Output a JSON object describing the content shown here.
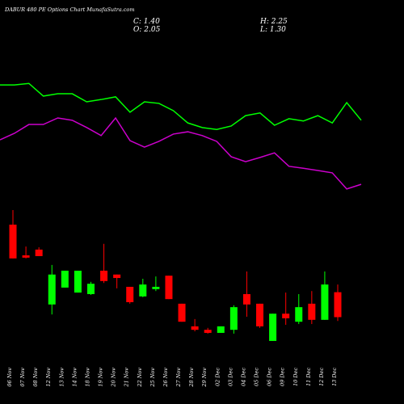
{
  "header": {
    "title": "DABUR 480 PE Options Chart MunafaSutra.com",
    "close": "C: 1.40",
    "high": "H: 2.25",
    "open": "O: 2.05",
    "low": "L: 1.30"
  },
  "chart_data": {
    "type": "candlestick",
    "categories": [
      "06 Nov",
      "07 Nov",
      "08 Nov",
      "12 Nov",
      "13 Nov",
      "14 Nov",
      "18 Nov",
      "19 Nov",
      "20 Nov",
      "21 Nov",
      "22 Nov",
      "25 Nov",
      "26 Nov",
      "27 Nov",
      "28 Nov",
      "29 Nov",
      "02 Dec",
      "03 Dec",
      "04 Dec",
      "05 Dec",
      "06 Dec",
      "09 Dec",
      "10 Dec",
      "11 Dec",
      "12 Dec",
      "13 Dec"
    ],
    "open": [
      3.81,
      3.01,
      3.16,
      1.73,
      2.17,
      2.04,
      2.0,
      2.61,
      2.51,
      2.19,
      1.94,
      2.13,
      2.48,
      1.75,
      1.16,
      1.07,
      0.99,
      1.07,
      2.0,
      1.75,
      0.78,
      1.49,
      1.28,
      1.75,
      1.33,
      2.05
    ],
    "high": [
      4.19,
      3.24,
      3.22,
      2.76,
      2.61,
      2.61,
      2.32,
      3.31,
      2.51,
      2.19,
      2.4,
      2.46,
      2.48,
      1.75,
      1.35,
      1.12,
      1.16,
      1.71,
      2.59,
      1.75,
      1.49,
      2.04,
      2.0,
      2.08,
      2.59,
      2.25
    ],
    "low": [
      2.93,
      2.93,
      2.99,
      1.47,
      2.17,
      2.04,
      1.98,
      2.29,
      2.15,
      1.75,
      1.92,
      2.08,
      1.87,
      1.28,
      1.03,
      0.97,
      0.99,
      0.97,
      1.41,
      1.12,
      0.78,
      1.2,
      1.22,
      1.22,
      1.33,
      1.3
    ],
    "close": [
      2.93,
      2.95,
      2.99,
      2.51,
      2.61,
      2.61,
      2.27,
      2.34,
      2.42,
      1.79,
      2.25,
      2.19,
      1.87,
      1.28,
      1.07,
      0.99,
      1.16,
      1.66,
      1.73,
      1.16,
      1.49,
      1.37,
      1.66,
      1.33,
      2.25,
      1.4
    ],
    "up_color": "#00ff00",
    "down_color": "#ff0000",
    "lines": [
      {
        "color": "#00ff00",
        "values": [
          7.45,
          7.45,
          7.49,
          7.16,
          7.22,
          7.22,
          7.01,
          7.07,
          7.14,
          6.74,
          7.01,
          6.97,
          6.78,
          6.46,
          6.34,
          6.29,
          6.38,
          6.65,
          6.72,
          6.4,
          6.57,
          6.51,
          6.65,
          6.46,
          6.99,
          6.53
        ]
      },
      {
        "color": "#cc00cc",
        "values": [
          6.02,
          6.19,
          6.42,
          6.42,
          6.59,
          6.53,
          6.34,
          6.13,
          6.59,
          6.0,
          5.83,
          5.98,
          6.17,
          6.23,
          6.13,
          5.98,
          5.58,
          5.45,
          5.56,
          5.68,
          5.33,
          5.28,
          5.22,
          5.16,
          4.74,
          4.86
        ]
      }
    ],
    "ylim": [
      0.4,
      8.4
    ]
  }
}
